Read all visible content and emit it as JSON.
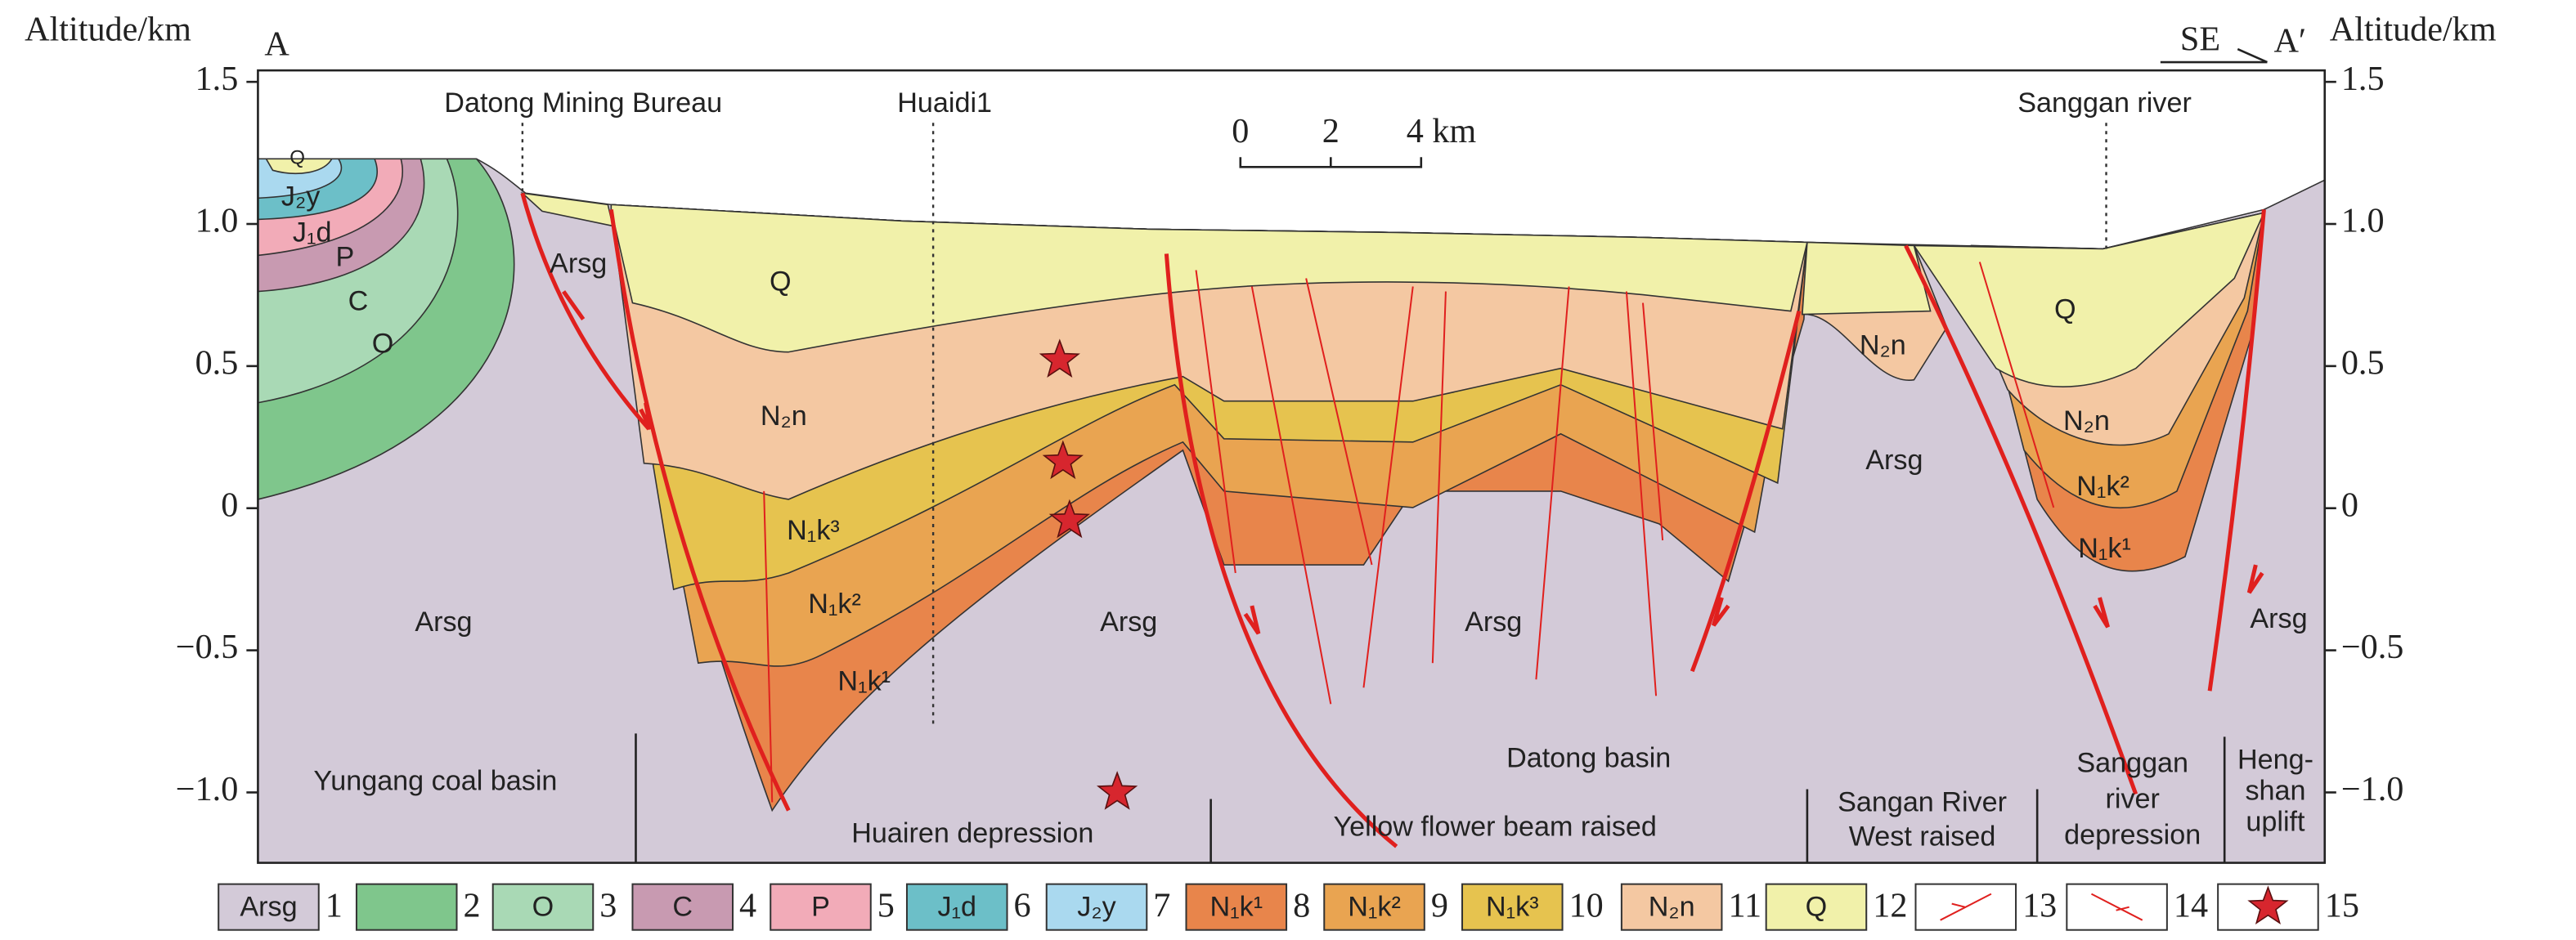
{
  "header": {
    "left_axis_title": "Altitude/km",
    "right_axis_title": "Altitude/km",
    "start": "A",
    "end": "A′",
    "direction": "SE"
  },
  "axis": {
    "ylim": [
      -1.25,
      1.55
    ],
    "ticks": [
      1.5,
      {
        "value": 1,
        "label": "1.0"
      },
      0.5,
      0,
      {
        "value": -0.5,
        "label": "−0.5"
      },
      {
        "value": -1,
        "label": "−1.0"
      }
    ]
  },
  "wells": [
    "Datong Mining Bureau",
    "Huaidi1",
    "Sanggan river"
  ],
  "scale_bar": {
    "labels": [
      "0",
      "2",
      "4 km"
    ]
  },
  "layer_labels": [
    "Q",
    "J₂y",
    "J₁d",
    "P",
    "C",
    "O",
    "Arsg",
    "Arsg",
    "Q",
    "N₂n",
    "N₁k³",
    "N₁k²",
    "N₁k¹",
    "Arsg",
    "Arsg",
    "N₂n",
    "Arsg",
    "Q",
    "N₂n",
    "N₁k²",
    "N₁k¹",
    "Arsg"
  ],
  "regions": [
    {
      "lines": [
        "Yungang coal basin"
      ]
    },
    {
      "lines": [
        "Huairen depression"
      ]
    },
    {
      "lines": [
        "Datong basin"
      ]
    },
    {
      "lines": [
        "Yellow flower beam raised"
      ]
    },
    {
      "lines": [
        "Sangan River",
        "West raised"
      ]
    },
    {
      "lines": [
        "Sanggan",
        "river",
        "depression"
      ]
    },
    {
      "lines": [
        "Heng-",
        "shan",
        "uplift"
      ]
    }
  ],
  "legend": [
    {
      "label": "Arsg",
      "number": "1"
    },
    {
      "number": "2"
    },
    {
      "label": "O",
      "number": "3"
    },
    {
      "label": "C",
      "number": "4"
    },
    {
      "label": "P",
      "number": "5"
    },
    {
      "label": "J₁d",
      "number": "6"
    },
    {
      "label": "J₂y",
      "number": "7"
    },
    {
      "label": "N₁k¹",
      "number": "8"
    },
    {
      "label": "N₁k²",
      "number": "9"
    },
    {
      "label": "N₁k³",
      "number": "10"
    },
    {
      "label": "N₂n",
      "number": "11"
    },
    {
      "label": "Q",
      "number": "12"
    },
    {
      "number": "13"
    },
    {
      "number": "14"
    },
    {
      "number": "15"
    }
  ]
}
